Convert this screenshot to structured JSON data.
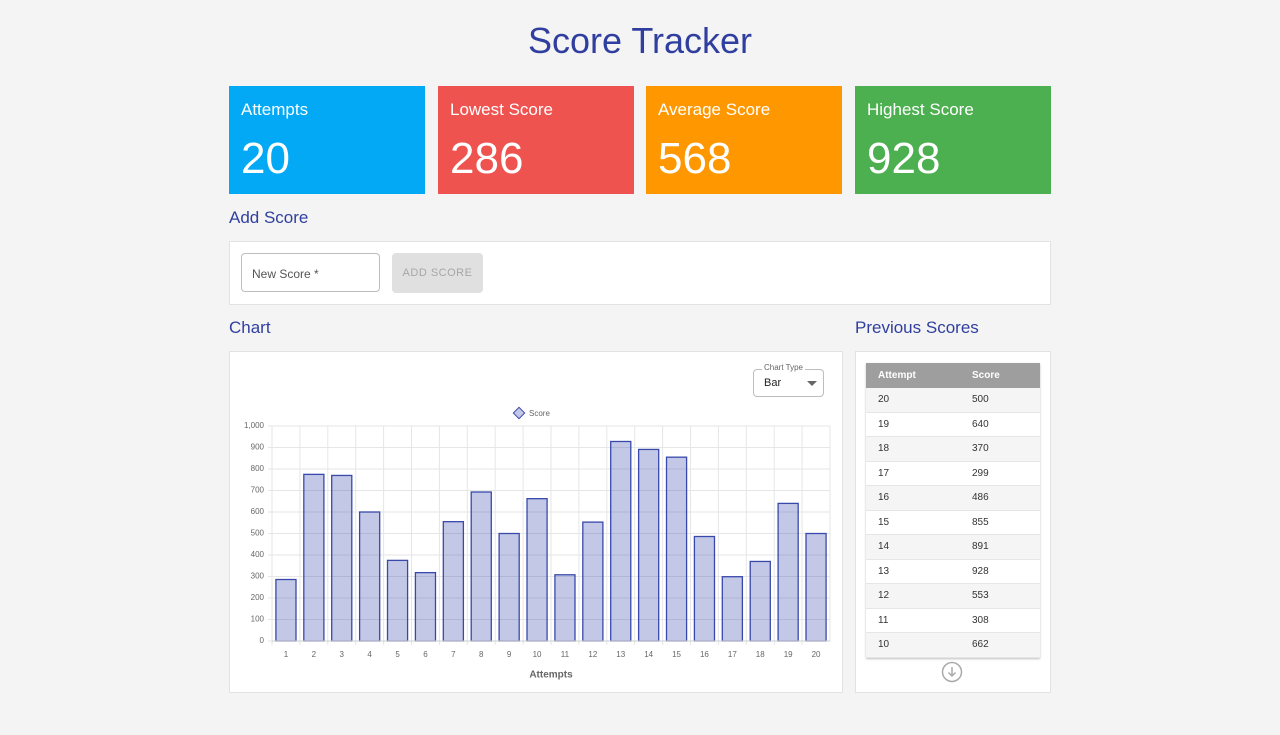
{
  "header": {
    "title": "Score Tracker"
  },
  "stats": [
    {
      "label": "Attempts",
      "value": 20,
      "color": "#03a9f4"
    },
    {
      "label": "Lowest Score",
      "value": 286,
      "color": "#ef5350"
    },
    {
      "label": "Average Score",
      "value": 568,
      "color": "#ff9800"
    },
    {
      "label": "Highest Score",
      "value": 928,
      "color": "#4caf50"
    }
  ],
  "add_score": {
    "title": "Add Score",
    "input_placeholder": "New Score *",
    "button": "ADD SCORE"
  },
  "chart_section": {
    "title": "Chart",
    "select_label": "Chart Type",
    "select_value": "Bar"
  },
  "chart_data": {
    "type": "bar",
    "x_label": "Attempts",
    "categories": [
      "1",
      "2",
      "3",
      "4",
      "5",
      "6",
      "7",
      "8",
      "9",
      "10",
      "11",
      "12",
      "13",
      "14",
      "15",
      "16",
      "17",
      "18",
      "19",
      "20"
    ],
    "series": [
      {
        "name": "Score",
        "color": "#3949ab",
        "values": [
          286,
          775,
          770,
          600,
          375,
          318,
          555,
          693,
          500,
          662,
          308,
          553,
          928,
          891,
          855,
          486,
          299,
          370,
          640,
          500
        ]
      }
    ],
    "ylim": [
      0,
      1000
    ],
    "yticks": [
      0,
      100,
      200,
      300,
      400,
      500,
      600,
      700,
      800,
      900,
      {
        "value": 1000,
        "label": "1,000"
      }
    ],
    "grid": true
  },
  "previous_scores": {
    "title": "Previous Scores",
    "columns": [
      "Attempt",
      "Score"
    ],
    "rows": [
      [
        20,
        500
      ],
      [
        19,
        640
      ],
      [
        18,
        370
      ],
      [
        17,
        299
      ],
      [
        16,
        486
      ],
      [
        15,
        855
      ],
      [
        14,
        891
      ],
      [
        13,
        928
      ],
      [
        12,
        553
      ],
      [
        11,
        308
      ],
      [
        10,
        662
      ]
    ]
  }
}
